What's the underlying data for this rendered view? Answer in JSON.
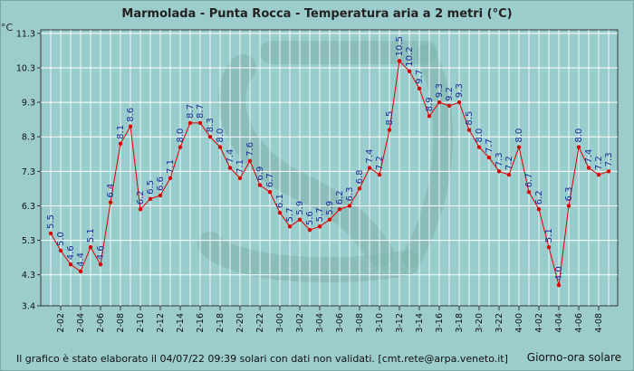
{
  "chart_data": {
    "type": "line",
    "title": "Marmolada - Punta Rocca - Temperatura aria a 2 metri (°C)",
    "ylabel": "°C",
    "xlabel": "Giorno-ora solare",
    "ylim": [
      3.4,
      11.4
    ],
    "yticks": [
      "3.4",
      "4.3",
      "5.3",
      "6.3",
      "7.3",
      "8.3",
      "9.3",
      "10.3",
      "11.3"
    ],
    "xticks": [
      "2-02",
      "2-04",
      "2-06",
      "2-08",
      "2-10",
      "2-12",
      "2-14",
      "2-16",
      "2-18",
      "2-20",
      "2-22",
      "3-00",
      "3-02",
      "3-04",
      "3-06",
      "3-08",
      "3-10",
      "3-12",
      "3-14",
      "3-16",
      "3-18",
      "3-20",
      "3-22",
      "4-00",
      "4-02",
      "4-04",
      "4-06",
      "4-08"
    ],
    "grid": true,
    "series": [
      {
        "color": "#dd0000",
        "label_color": "#1a2a9a",
        "x": [
          "2-01",
          "2-02",
          "2-03",
          "2-04",
          "2-05",
          "2-06",
          "2-07",
          "2-08",
          "2-09",
          "2-10",
          "2-11",
          "2-12",
          "2-13",
          "2-14",
          "2-15",
          "2-16",
          "2-17",
          "2-18",
          "2-19",
          "2-20",
          "2-21",
          "2-22",
          "2-23",
          "3-00",
          "3-01",
          "3-02",
          "3-03",
          "3-04",
          "3-05",
          "3-06",
          "3-07",
          "3-08",
          "3-09",
          "3-10",
          "3-11",
          "3-12",
          "3-13",
          "3-14",
          "3-15",
          "3-16",
          "3-17",
          "3-18",
          "3-19",
          "3-20",
          "3-21",
          "3-22",
          "3-23",
          "4-00",
          "4-01",
          "4-02",
          "4-03",
          "4-04",
          "4-05",
          "4-06",
          "4-07",
          "4-08",
          "4-09"
        ],
        "values": [
          5.5,
          5.0,
          4.6,
          4.4,
          5.1,
          4.6,
          6.4,
          8.1,
          8.6,
          6.2,
          6.5,
          6.6,
          7.1,
          8.0,
          8.7,
          8.7,
          8.3,
          8.0,
          7.4,
          7.1,
          7.6,
          6.9,
          6.7,
          6.1,
          5.7,
          5.9,
          5.6,
          5.7,
          5.9,
          6.2,
          6.3,
          6.8,
          7.4,
          7.2,
          8.5,
          10.5,
          10.2,
          9.7,
          8.9,
          9.3,
          9.2,
          9.3,
          8.5,
          8.0,
          7.7,
          7.3,
          7.2,
          8.0,
          6.7,
          6.2,
          5.1,
          4.0,
          6.3,
          8.0,
          7.4,
          7.2,
          7.3
        ],
        "labels": [
          "5.5",
          "5.0",
          "4.6",
          "4.4",
          "5.1",
          "4.6",
          "6.4",
          "8.1",
          "8.6",
          "6.2",
          "6.5",
          "6.6",
          "7.1",
          "8.0",
          "8.7",
          "8.7",
          "8.3",
          "8.0",
          "7.4",
          "7.1",
          "7.6",
          "6.9",
          "6.7",
          "6.1",
          "5.7",
          "5.9",
          "5.6",
          "5.7",
          "5.9",
          "6.2",
          "6.3",
          "6.8",
          "7.4",
          "7.2",
          "8.5",
          "10.5",
          "10.2",
          "9.7",
          "8.9",
          "9.3",
          "9.2",
          "9.3",
          "8.5",
          "8.0",
          "7.7",
          "7.3",
          "7.2",
          "8.0",
          "6.7",
          "6.2",
          "5.1",
          "4.0",
          "6.3",
          "8.0",
          "7.4",
          "7.2",
          "7.3"
        ]
      }
    ]
  },
  "footer": "Il grafico è stato elaborato il 04/07/22 09:39 solari con dati non validati. [cmt.rete@arpa.veneto.it]",
  "colors": {
    "background": "#9ccccc",
    "plot": "#99cccc",
    "grid": "#ffffff",
    "line": "#dd0000",
    "labels": "#1a2a9a"
  }
}
